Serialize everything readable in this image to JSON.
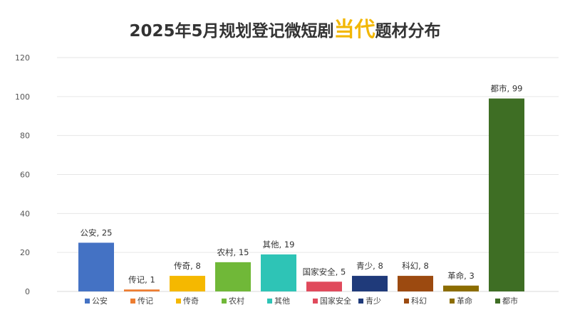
{
  "title": {
    "before": "2025年5月规划登记微短剧",
    "highlight": "当代",
    "after": "题材分布"
  },
  "colors": {
    "title_highlight": "#F2B705",
    "grid": "#E6E6E6",
    "axis": "#D9D9D9"
  },
  "chart_data": {
    "type": "bar",
    "title": "2025年5月规划登记微短剧当代题材分布",
    "categories": [
      "公安",
      "传记",
      "传奇",
      "农村",
      "其他",
      "国家安全",
      "青少",
      "科幻",
      "革命",
      "都市"
    ],
    "values": [
      25,
      1,
      8,
      15,
      19,
      5,
      8,
      8,
      3,
      99
    ],
    "data_labels": [
      "公安, 25",
      "传记, 1",
      "传奇, 8",
      "农村, 15",
      "其他, 19",
      "国家安全, 5",
      "青少, 8",
      "科幻, 8",
      "革命, 3",
      "都市, 99"
    ],
    "bar_colors": [
      "#4472C4",
      "#ED7D31",
      "#F5B800",
      "#70B838",
      "#2EC4B6",
      "#E04A5C",
      "#1F3A7A",
      "#9C4A10",
      "#8C6D00",
      "#3E6E24"
    ],
    "ylim": [
      0,
      120
    ],
    "yticks": [
      0,
      20,
      40,
      60,
      80,
      100,
      120
    ],
    "grid": true,
    "legend_position": "bottom",
    "xlabel": "",
    "ylabel": ""
  }
}
